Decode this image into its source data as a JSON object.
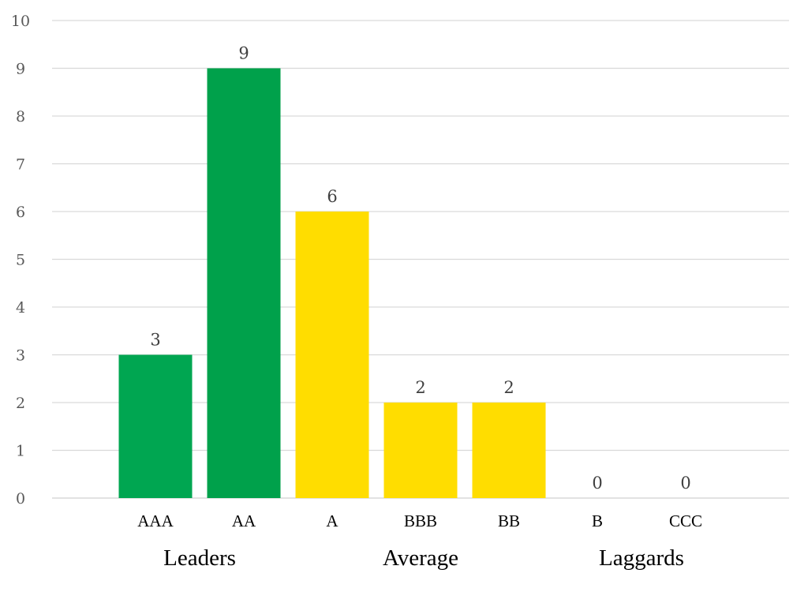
{
  "chart_data": {
    "type": "bar",
    "categories": [
      "AAA",
      "AA",
      "A",
      "BBB",
      "BB",
      "B",
      "CCC"
    ],
    "values": [
      3,
      9,
      6,
      2,
      2,
      0,
      0
    ],
    "bar_colors": [
      "#00a651",
      "#00a14b",
      "#ffdd00",
      "#ffdd00",
      "#ffdd00",
      "#ffdd00",
      "#ffdd00"
    ],
    "groups": [
      {
        "label": "Leaders",
        "categories": [
          "AAA",
          "AA"
        ]
      },
      {
        "label": "Average",
        "categories": [
          "A",
          "BBB",
          "BB"
        ]
      },
      {
        "label": "Laggards",
        "categories": [
          "B",
          "CCC"
        ]
      }
    ],
    "yticks": [
      "0",
      "1",
      "2",
      "3",
      "4",
      "5",
      "6",
      "7",
      "8",
      "9",
      "10"
    ],
    "ylim": [
      0,
      10
    ],
    "grid": true,
    "legend": "none",
    "title": "",
    "xlabel": "",
    "ylabel": "",
    "colors": {
      "grid": "#d9d9d9",
      "tick_text": "#595959",
      "data_label": "#404040"
    }
  }
}
